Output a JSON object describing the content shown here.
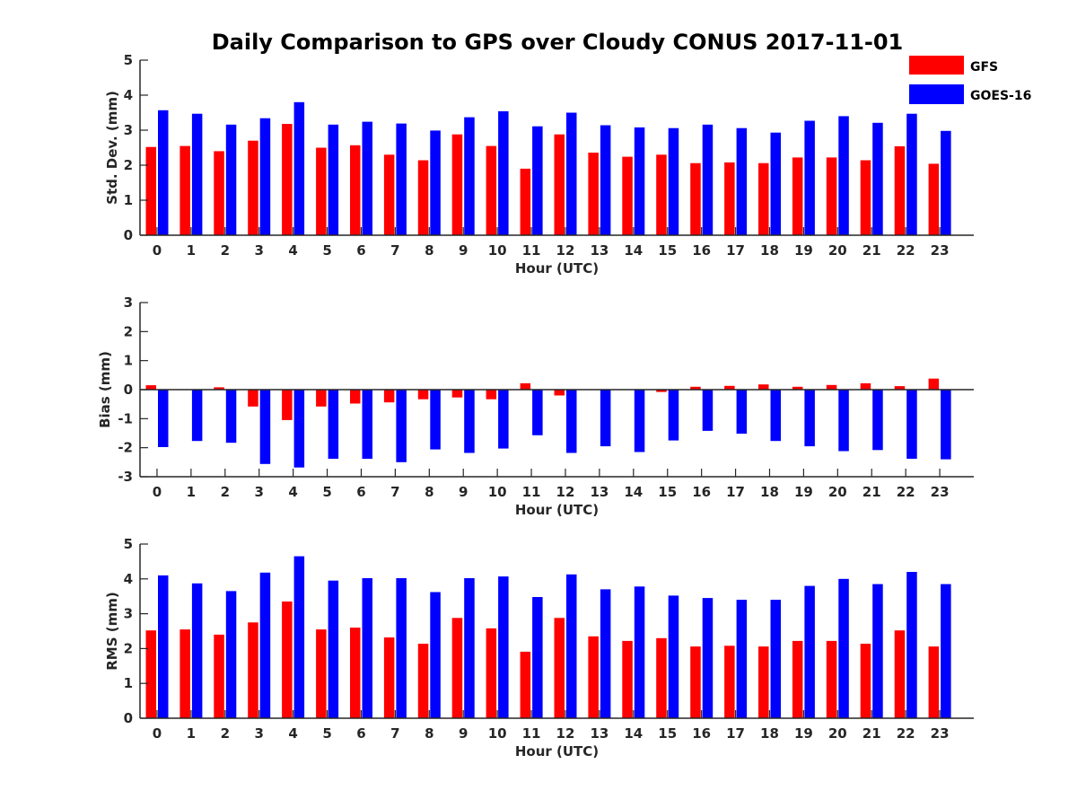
{
  "title": "Daily Comparison to GPS over Cloudy CONUS 2017-11-01",
  "legend": {
    "position": "top-right",
    "entries": [
      {
        "name": "GFS",
        "color": "#ff0000"
      },
      {
        "name": "GOES-16",
        "color": "#0000ff"
      }
    ]
  },
  "chart_data": [
    {
      "type": "bar",
      "xlabel": "Hour (UTC)",
      "ylabel": "Std. Dev. (mm)",
      "ylim": [
        0,
        5
      ],
      "yticks": [
        "0",
        "1",
        "2",
        "3",
        "4",
        "5"
      ],
      "grid": false,
      "categories": [
        "0",
        "1",
        "2",
        "3",
        "4",
        "5",
        "6",
        "7",
        "8",
        "9",
        "10",
        "11",
        "12",
        "13",
        "14",
        "15",
        "16",
        "17",
        "18",
        "19",
        "20",
        "21",
        "22",
        "23"
      ],
      "series": [
        {
          "name": "GFS",
          "color": "#ff0000",
          "values": [
            2.52,
            2.55,
            2.4,
            2.7,
            3.18,
            2.5,
            2.57,
            2.3,
            2.14,
            2.88,
            2.55,
            1.9,
            2.88,
            2.36,
            2.24,
            2.3,
            2.06,
            2.08,
            2.06,
            2.22,
            2.22,
            2.14,
            2.54,
            2.04
          ]
        },
        {
          "name": "GOES-16",
          "color": "#0000ff",
          "values": [
            3.57,
            3.47,
            3.16,
            3.34,
            3.8,
            3.16,
            3.24,
            3.19,
            2.99,
            3.37,
            3.54,
            3.11,
            3.5,
            3.14,
            3.08,
            3.06,
            3.16,
            3.06,
            2.93,
            3.27,
            3.4,
            3.21,
            3.47,
            2.98
          ]
        }
      ]
    },
    {
      "type": "bar",
      "xlabel": "Hour (UTC)",
      "ylabel": "Bias (mm)",
      "ylim": [
        -3,
        3
      ],
      "yticks": [
        "-3",
        "-2",
        "-1",
        "0",
        "1",
        "2",
        "3"
      ],
      "grid": false,
      "categories": [
        "0",
        "1",
        "2",
        "3",
        "4",
        "5",
        "6",
        "7",
        "8",
        "9",
        "10",
        "11",
        "12",
        "13",
        "14",
        "15",
        "16",
        "17",
        "18",
        "19",
        "20",
        "21",
        "22",
        "23"
      ],
      "series": [
        {
          "name": "GFS",
          "color": "#ff0000",
          "values": [
            0.15,
            0,
            0.08,
            -0.58,
            -1.05,
            -0.58,
            -0.48,
            -0.44,
            -0.33,
            -0.27,
            -0.33,
            0.22,
            -0.2,
            0,
            0,
            -0.08,
            0.1,
            0.13,
            0.18,
            0.1,
            0.16,
            0.22,
            0.12,
            0.38
          ]
        },
        {
          "name": "GOES-16",
          "color": "#0000ff",
          "values": [
            -1.98,
            -1.77,
            -1.83,
            -2.56,
            -2.68,
            -2.38,
            -2.38,
            -2.5,
            -2.06,
            -2.18,
            -2.03,
            -1.57,
            -2.18,
            -1.95,
            -2.15,
            -1.75,
            -1.42,
            -1.52,
            -1.77,
            -1.95,
            -2.12,
            -2.08,
            -2.38,
            -2.4
          ]
        }
      ]
    },
    {
      "type": "bar",
      "xlabel": "Hour (UTC)",
      "ylabel": "RMS (mm)",
      "ylim": [
        0,
        5
      ],
      "yticks": [
        "0",
        "1",
        "2",
        "3",
        "4",
        "5"
      ],
      "grid": false,
      "categories": [
        "0",
        "1",
        "2",
        "3",
        "4",
        "5",
        "6",
        "7",
        "8",
        "9",
        "10",
        "11",
        "12",
        "13",
        "14",
        "15",
        "16",
        "17",
        "18",
        "19",
        "20",
        "21",
        "22",
        "23"
      ],
      "series": [
        {
          "name": "GFS",
          "color": "#ff0000",
          "values": [
            2.52,
            2.55,
            2.4,
            2.75,
            3.35,
            2.55,
            2.6,
            2.32,
            2.14,
            2.88,
            2.58,
            1.91,
            2.88,
            2.35,
            2.22,
            2.3,
            2.06,
            2.08,
            2.06,
            2.22,
            2.22,
            2.14,
            2.52,
            2.06
          ]
        },
        {
          "name": "GOES-16",
          "color": "#0000ff",
          "values": [
            4.1,
            3.87,
            3.65,
            4.18,
            4.65,
            3.95,
            4.02,
            4.02,
            3.62,
            4.02,
            4.07,
            3.48,
            4.13,
            3.7,
            3.78,
            3.52,
            3.45,
            3.4,
            3.4,
            3.8,
            4.0,
            3.85,
            4.2,
            3.85
          ]
        }
      ]
    }
  ]
}
